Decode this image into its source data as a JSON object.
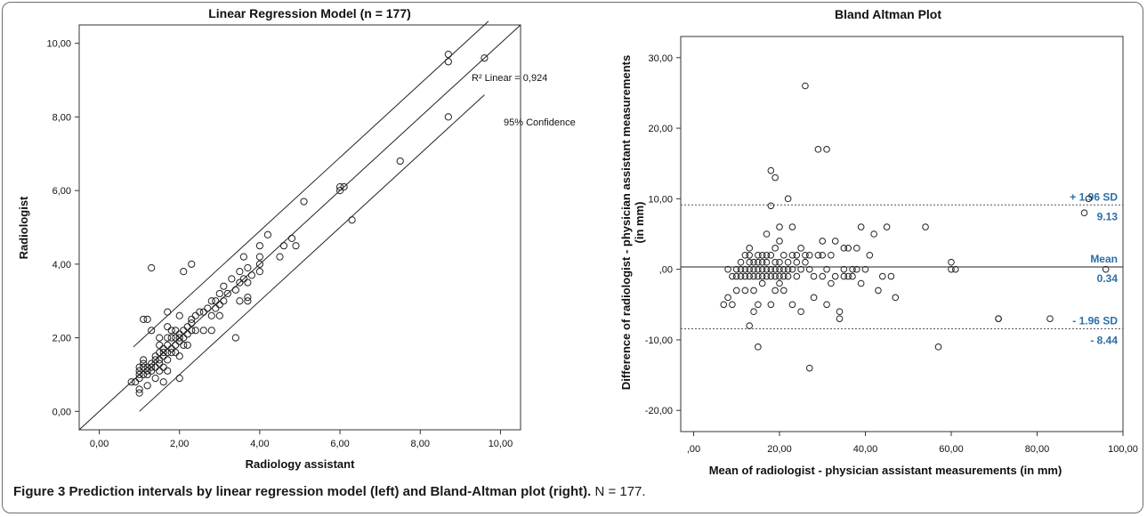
{
  "figure": {
    "caption_label": "Figure 3",
    "caption_text": " Prediction intervals by linear regression model (left) and Bland-Altman plot (right).",
    "caption_n": " N = 177."
  },
  "chart_data": [
    {
      "type": "scatter",
      "title": "Linear Regression Model (n = 177)",
      "xlabel": "Radiology assistant",
      "ylabel": "Radiologist",
      "xlim": [
        -0.5,
        10.5
      ],
      "ylim": [
        -0.5,
        10.5
      ],
      "xticks": [
        0,
        2,
        4,
        6,
        8,
        10
      ],
      "yticks": [
        0,
        2,
        4,
        6,
        8,
        10
      ],
      "xtick_labels": [
        "0,00",
        "2,00",
        "4,00",
        "6,00",
        "8,00",
        "10,00"
      ],
      "ytick_labels": [
        "0,00",
        "2,00",
        "4,00",
        "6,00",
        "8,00",
        "10,00"
      ],
      "grid": false,
      "annotations": {
        "r2_label": "R² Linear = 0,924",
        "ci_label": "95% Confidence"
      },
      "lines": [
        {
          "x": [
            -0.5,
            10.5
          ],
          "y": [
            -0.5,
            10.5
          ]
        },
        {
          "x": [
            0.85,
            9.7
          ],
          "y": [
            1.75,
            10.6
          ]
        },
        {
          "x": [
            1.0,
            9.6
          ],
          "y": [
            0.0,
            8.6
          ]
        }
      ],
      "points": [
        [
          0.8,
          0.8
        ],
        [
          0.9,
          0.8
        ],
        [
          1.0,
          0.5
        ],
        [
          1.0,
          0.6
        ],
        [
          1.0,
          0.9
        ],
        [
          1.0,
          1.0
        ],
        [
          1.0,
          1.1
        ],
        [
          1.0,
          1.2
        ],
        [
          1.1,
          1.0
        ],
        [
          1.1,
          1.2
        ],
        [
          1.1,
          1.3
        ],
        [
          1.1,
          1.4
        ],
        [
          1.1,
          2.5
        ],
        [
          1.2,
          0.7
        ],
        [
          1.2,
          1.0
        ],
        [
          1.2,
          1.1
        ],
        [
          1.2,
          1.2
        ],
        [
          1.2,
          2.5
        ],
        [
          1.3,
          1.1
        ],
        [
          1.3,
          1.2
        ],
        [
          1.3,
          1.3
        ],
        [
          1.3,
          2.2
        ],
        [
          1.3,
          3.9
        ],
        [
          1.4,
          0.9
        ],
        [
          1.4,
          1.2
        ],
        [
          1.4,
          1.4
        ],
        [
          1.4,
          1.5
        ],
        [
          1.5,
          1.1
        ],
        [
          1.5,
          1.3
        ],
        [
          1.5,
          1.4
        ],
        [
          1.5,
          1.6
        ],
        [
          1.5,
          1.8
        ],
        [
          1.5,
          2.0
        ],
        [
          1.6,
          0.8
        ],
        [
          1.6,
          1.2
        ],
        [
          1.6,
          1.5
        ],
        [
          1.6,
          1.6
        ],
        [
          1.6,
          1.7
        ],
        [
          1.7,
          1.1
        ],
        [
          1.7,
          1.4
        ],
        [
          1.7,
          1.6
        ],
        [
          1.7,
          1.8
        ],
        [
          1.7,
          2.0
        ],
        [
          1.7,
          2.3
        ],
        [
          1.7,
          2.7
        ],
        [
          1.8,
          1.6
        ],
        [
          1.8,
          1.7
        ],
        [
          1.8,
          2.0
        ],
        [
          1.8,
          2.2
        ],
        [
          1.9,
          1.6
        ],
        [
          1.9,
          1.8
        ],
        [
          1.9,
          2.0
        ],
        [
          1.9,
          2.2
        ],
        [
          2.0,
          0.9
        ],
        [
          2.0,
          1.5
        ],
        [
          2.0,
          1.9
        ],
        [
          2.0,
          2.0
        ],
        [
          2.0,
          2.1
        ],
        [
          2.0,
          2.6
        ],
        [
          2.1,
          1.8
        ],
        [
          2.1,
          2.0
        ],
        [
          2.1,
          2.2
        ],
        [
          2.1,
          3.8
        ],
        [
          2.2,
          1.8
        ],
        [
          2.2,
          2.1
        ],
        [
          2.2,
          2.3
        ],
        [
          2.3,
          2.2
        ],
        [
          2.3,
          2.4
        ],
        [
          2.3,
          2.5
        ],
        [
          2.3,
          4.0
        ],
        [
          2.4,
          2.2
        ],
        [
          2.4,
          2.6
        ],
        [
          2.5,
          2.7
        ],
        [
          2.6,
          2.2
        ],
        [
          2.6,
          2.7
        ],
        [
          2.7,
          2.8
        ],
        [
          2.8,
          2.2
        ],
        [
          2.8,
          2.6
        ],
        [
          2.8,
          3.0
        ],
        [
          2.9,
          2.8
        ],
        [
          2.9,
          3.0
        ],
        [
          3.0,
          2.6
        ],
        [
          3.0,
          2.9
        ],
        [
          3.0,
          3.2
        ],
        [
          3.1,
          3.0
        ],
        [
          3.1,
          3.4
        ],
        [
          3.2,
          3.2
        ],
        [
          3.3,
          3.6
        ],
        [
          3.4,
          2.0
        ],
        [
          3.4,
          3.3
        ],
        [
          3.5,
          3.0
        ],
        [
          3.5,
          3.5
        ],
        [
          3.5,
          3.8
        ],
        [
          3.6,
          3.6
        ],
        [
          3.6,
          4.2
        ],
        [
          3.7,
          3.0
        ],
        [
          3.7,
          3.1
        ],
        [
          3.7,
          3.5
        ],
        [
          3.7,
          3.9
        ],
        [
          3.8,
          3.7
        ],
        [
          4.0,
          3.8
        ],
        [
          4.0,
          4.0
        ],
        [
          4.0,
          4.2
        ],
        [
          4.0,
          4.5
        ],
        [
          4.2,
          4.8
        ],
        [
          4.5,
          4.2
        ],
        [
          4.6,
          4.5
        ],
        [
          4.8,
          4.7
        ],
        [
          4.9,
          4.5
        ],
        [
          5.1,
          5.7
        ],
        [
          6.0,
          6.0
        ],
        [
          6.0,
          6.1
        ],
        [
          6.1,
          6.1
        ],
        [
          6.3,
          5.2
        ],
        [
          7.5,
          6.8
        ],
        [
          8.7,
          8.0
        ],
        [
          8.7,
          9.5
        ],
        [
          8.7,
          9.7
        ],
        [
          9.6,
          9.6
        ]
      ]
    },
    {
      "type": "scatter",
      "title": "Bland Altman Plot",
      "xlabel": "Mean of radiologist - physician assistant measurements (in mm)",
      "ylabel": "Difference of radiologist - physician assistant measurements (in mm)",
      "xlim": [
        -3,
        100
      ],
      "ylim": [
        -23,
        33
      ],
      "xticks": [
        0,
        20,
        40,
        60,
        80,
        100
      ],
      "yticks": [
        -20,
        -10,
        0,
        10,
        20,
        30
      ],
      "xtick_labels": [
        ",00",
        "20,00",
        "40,00",
        "60,00",
        "80,00",
        "100,00"
      ],
      "ytick_labels": [
        "-20,00",
        "-10,00",
        ",00",
        "10,00",
        "20,00",
        "30,00"
      ],
      "grid": false,
      "reference_lines": [
        {
          "y": 9.13,
          "style": "dashed",
          "label": "+ 1.96 SD",
          "value_label": "9.13"
        },
        {
          "y": 0.34,
          "style": "solid",
          "label": "Mean",
          "value_label": "0.34"
        },
        {
          "y": -8.44,
          "style": "dashed",
          "label": "- 1.96 SD",
          "value_label": "- 8.44"
        }
      ],
      "points": [
        [
          7,
          -5
        ],
        [
          8,
          -4
        ],
        [
          8,
          0
        ],
        [
          9,
          -1
        ],
        [
          9,
          -5
        ],
        [
          10,
          0
        ],
        [
          10,
          -1
        ],
        [
          10,
          -3
        ],
        [
          11,
          0
        ],
        [
          11,
          1
        ],
        [
          11,
          -1
        ],
        [
          12,
          2
        ],
        [
          12,
          0
        ],
        [
          12,
          -1
        ],
        [
          12,
          -3
        ],
        [
          13,
          -8
        ],
        [
          13,
          3
        ],
        [
          13,
          1
        ],
        [
          13,
          0
        ],
        [
          13,
          -1
        ],
        [
          13,
          2
        ],
        [
          14,
          -6
        ],
        [
          14,
          0
        ],
        [
          14,
          1
        ],
        [
          14,
          -1
        ],
        [
          14,
          -3
        ],
        [
          15,
          2
        ],
        [
          15,
          0
        ],
        [
          15,
          -11
        ],
        [
          15,
          1
        ],
        [
          15,
          -1
        ],
        [
          15,
          -5
        ],
        [
          16,
          0
        ],
        [
          16,
          1
        ],
        [
          16,
          -1
        ],
        [
          16,
          -2
        ],
        [
          16,
          2
        ],
        [
          17,
          0
        ],
        [
          17,
          -1
        ],
        [
          17,
          5
        ],
        [
          17,
          2
        ],
        [
          17,
          1
        ],
        [
          18,
          -5
        ],
        [
          18,
          0
        ],
        [
          18,
          -1
        ],
        [
          18,
          9
        ],
        [
          18,
          14
        ],
        [
          18,
          2
        ],
        [
          19,
          13
        ],
        [
          19,
          3
        ],
        [
          19,
          0
        ],
        [
          19,
          -1
        ],
        [
          19,
          1
        ],
        [
          19,
          -3
        ],
        [
          20,
          6
        ],
        [
          20,
          4
        ],
        [
          20,
          0
        ],
        [
          20,
          -1
        ],
        [
          20,
          -2
        ],
        [
          20,
          1
        ],
        [
          21,
          0
        ],
        [
          21,
          -1
        ],
        [
          21,
          -3
        ],
        [
          21,
          2
        ],
        [
          22,
          10
        ],
        [
          22,
          0
        ],
        [
          22,
          -1
        ],
        [
          22,
          1
        ],
        [
          23,
          6
        ],
        [
          23,
          2
        ],
        [
          23,
          -5
        ],
        [
          23,
          0
        ],
        [
          24,
          -1
        ],
        [
          24,
          1
        ],
        [
          24,
          2
        ],
        [
          25,
          -6
        ],
        [
          25,
          3
        ],
        [
          25,
          0
        ],
        [
          26,
          26
        ],
        [
          26,
          1
        ],
        [
          26,
          2
        ],
        [
          27,
          -14
        ],
        [
          27,
          2
        ],
        [
          27,
          0
        ],
        [
          28,
          -1
        ],
        [
          28,
          -4
        ],
        [
          29,
          17
        ],
        [
          29,
          2
        ],
        [
          30,
          -1
        ],
        [
          30,
          4
        ],
        [
          30,
          2
        ],
        [
          31,
          17
        ],
        [
          31,
          0
        ],
        [
          31,
          -5
        ],
        [
          32,
          2
        ],
        [
          32,
          -2
        ],
        [
          33,
          4
        ],
        [
          33,
          -1
        ],
        [
          34,
          -7
        ],
        [
          34,
          -6
        ],
        [
          35,
          3
        ],
        [
          35,
          0
        ],
        [
          35,
          -1
        ],
        [
          36,
          -1
        ],
        [
          36,
          3
        ],
        [
          37,
          0
        ],
        [
          37,
          -1
        ],
        [
          38,
          3
        ],
        [
          38,
          0
        ],
        [
          39,
          6
        ],
        [
          39,
          -2
        ],
        [
          40,
          0
        ],
        [
          41,
          2
        ],
        [
          42,
          5
        ],
        [
          43,
          -3
        ],
        [
          44,
          -1
        ],
        [
          45,
          6
        ],
        [
          46,
          -1
        ],
        [
          47,
          -4
        ],
        [
          54,
          6
        ],
        [
          57,
          -11
        ],
        [
          60,
          0
        ],
        [
          60,
          1
        ],
        [
          61,
          0
        ],
        [
          71,
          -7
        ],
        [
          71,
          -7
        ],
        [
          83,
          -7
        ],
        [
          91,
          8
        ],
        [
          92,
          10
        ],
        [
          96,
          0
        ]
      ]
    }
  ]
}
